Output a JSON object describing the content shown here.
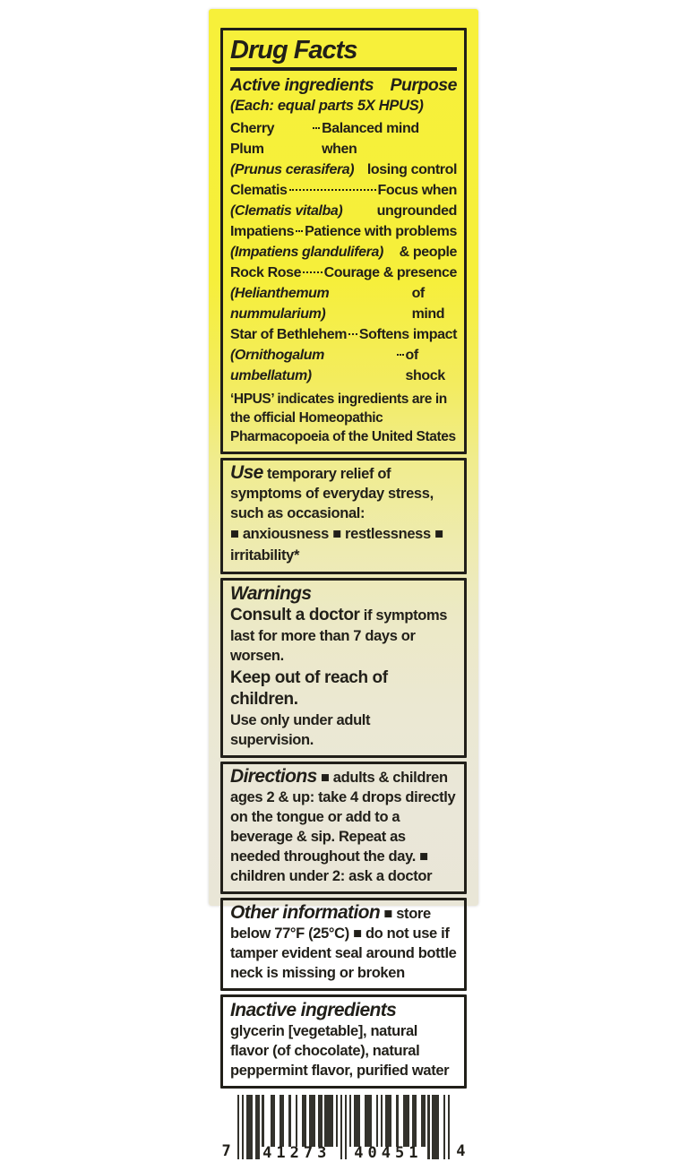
{
  "label": {
    "colors": {
      "ink": "#211f19",
      "label_top": "#f6ef3a",
      "label_bottom": "#eae7d7",
      "page_bg": "#ffffff",
      "bar_color": "#33322c"
    },
    "title": "Drug Facts",
    "active": {
      "heading": "Active ingredients",
      "purpose_heading": "Purpose",
      "each_note": "(Each: equal parts 5X HPUS)",
      "ingredients": [
        {
          "name": "Cherry Plum",
          "purpose": "Balanced mind when",
          "latin": "(Prunus cerasifera)",
          "purpose_cont": "losing control"
        },
        {
          "name": "Clematis",
          "purpose": "Focus when",
          "latin": "(Clematis vitalba)",
          "purpose_cont": "ungrounded"
        },
        {
          "name": "Impatiens",
          "purpose": "Patience with problems",
          "latin": "(Impatiens glandulifera)",
          "purpose_cont": "& people"
        },
        {
          "name": "Rock Rose",
          "purpose": "Courage & presence",
          "latin": "(Helianthemum nummularium)",
          "purpose_cont": "of mind"
        },
        {
          "name": "Star of Bethlehem",
          "purpose": "Softens impact",
          "latin": "(Ornithogalum umbellatum)",
          "purpose_cont": "of shock"
        }
      ],
      "hpus_note": "‘HPUS’ indicates ingredients are in the official Homeopathic Pharmacopoeia of the United States"
    },
    "use": {
      "heading": "Use",
      "text": "temporary relief of symptoms of everyday stress, such as occasional:",
      "bullets_line": "■ anxiousness  ■ restlessness  ■ irritability*"
    },
    "warnings": {
      "heading": "Warnings",
      "consult_bold": "Consult a doctor",
      "consult_rest": " if symptoms last for more than 7 days or worsen.",
      "keep_bold": "Keep out of reach of children.",
      "supervision": "Use only under adult supervision."
    },
    "directions": {
      "heading": "Directions",
      "text": "■ adults & children ages 2 & up: take 4 drops directly on the tongue or add to a beverage & sip. Repeat as needed throughout the day.  ■ children under 2: ask a doctor"
    },
    "other_info": {
      "heading": "Other information",
      "text": "■ store below 77°F (25°C)  ■ do not use if tamper evident seal around bottle neck is missing or broken"
    },
    "inactive": {
      "heading": "Inactive ingredients",
      "text": "glycerin [vegetable], natural flavor (of chocolate), natural peppermint flavor, purified water"
    }
  },
  "barcode": {
    "digits_display": "7 41273 40451 4",
    "left_digit": "7",
    "left_group": "41273",
    "right_group": "40451",
    "right_digit": "4",
    "pattern": "10101110110100011001100100100110111011011110101010101110011100101011100100111011001101011100101"
  }
}
